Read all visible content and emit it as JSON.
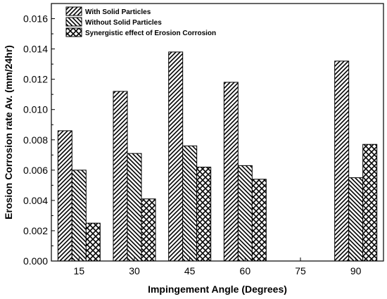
{
  "chart_data": {
    "type": "bar",
    "title": "",
    "xlabel": "Impingement Angle (Degrees)",
    "ylabel": "Erosion Corrosion rate Av. (mm/24hr)",
    "categories": [
      "15",
      "30",
      "45",
      "60",
      "75",
      "90"
    ],
    "ylim": [
      0,
      0.017
    ],
    "yticks": [
      "0.000",
      "0.002",
      "0.004",
      "0.006",
      "0.008",
      "0.010",
      "0.012",
      "0.014",
      "0.016"
    ],
    "grid": false,
    "legend_position": "top-left",
    "series": [
      {
        "name": "With Solid Particles",
        "pattern": "diagonal-hatch",
        "values": [
          0.0086,
          0.0112,
          0.0138,
          0.0118,
          null,
          0.0132
        ]
      },
      {
        "name": "Without Solid Particles",
        "pattern": "back-diagonal-hatch",
        "values": [
          0.006,
          0.0071,
          0.0076,
          0.0063,
          null,
          0.0055
        ]
      },
      {
        "name": "Synergistic effect of Erosion Corrosion",
        "pattern": "crosshatch",
        "values": [
          0.0025,
          0.0041,
          0.0062,
          0.0054,
          null,
          0.0077
        ]
      }
    ],
    "colors": {
      "fill": "#ffffff",
      "stroke": "#000000"
    }
  }
}
